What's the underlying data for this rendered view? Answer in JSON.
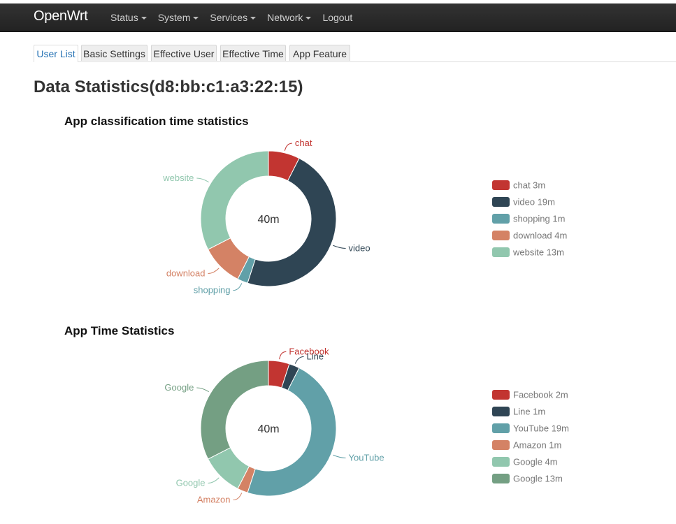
{
  "brand": "OpenWrt",
  "nav": [
    {
      "label": "Status",
      "caret": true
    },
    {
      "label": "System",
      "caret": true
    },
    {
      "label": "Services",
      "caret": true
    },
    {
      "label": "Network",
      "caret": true
    },
    {
      "label": "Logout",
      "caret": false
    }
  ],
  "tabs": [
    {
      "label": "User List",
      "active": true
    },
    {
      "label": "Basic Settings",
      "active": false
    },
    {
      "label": "Effective User",
      "active": false
    },
    {
      "label": "Effective Time",
      "active": false
    },
    {
      "label": "App Feature",
      "active": false
    }
  ],
  "page_title": "Data Statistics(d8:bb:c1:a3:22:15)",
  "colors": {
    "red": "#c23531",
    "navy": "#2f4554",
    "teal": "#61a0a8",
    "orange": "#d48265",
    "mint": "#91c7ae",
    "green": "#749f83"
  },
  "chart_data": [
    {
      "type": "pie",
      "title": "App classification time statistics",
      "center_label": "40m",
      "slices": [
        {
          "name": "chat",
          "value": 3,
          "legend": "chat 3m",
          "color": "#c23531"
        },
        {
          "name": "video",
          "value": 19,
          "legend": "video 19m",
          "color": "#2f4554"
        },
        {
          "name": "shopping",
          "value": 1,
          "legend": "shopping 1m",
          "color": "#61a0a8"
        },
        {
          "name": "download",
          "value": 4,
          "legend": "download 4m",
          "color": "#d48265"
        },
        {
          "name": "website",
          "value": 13,
          "legend": "website 13m",
          "color": "#91c7ae"
        }
      ]
    },
    {
      "type": "pie",
      "title": "App Time Statistics",
      "center_label": "40m",
      "slices": [
        {
          "name": "Facebook",
          "value": 2,
          "legend": "Facebook  2m",
          "color": "#c23531"
        },
        {
          "name": "Line",
          "value": 1,
          "legend": "Line  1m",
          "color": "#2f4554"
        },
        {
          "name": "YouTube",
          "value": 19,
          "legend": "YouTube  19m",
          "color": "#61a0a8"
        },
        {
          "name": "Amazon",
          "value": 1,
          "legend": "Amazon  1m",
          "color": "#d48265"
        },
        {
          "name": "Google",
          "value": 4,
          "legend": "Google  4m",
          "color": "#91c7ae"
        },
        {
          "name": "Google",
          "value": 13,
          "legend": "Google  13m",
          "color": "#749f83"
        }
      ]
    }
  ]
}
